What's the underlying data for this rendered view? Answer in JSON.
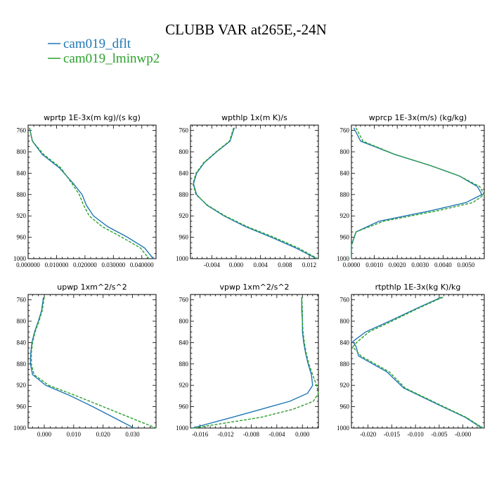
{
  "figure": {
    "title": "CLUBB VAR at265E,-24N",
    "legend": [
      {
        "name": "cam019_dflt",
        "color": "#1f77b4"
      },
      {
        "name": "cam019_lminwp2",
        "color": "#2ca02c"
      }
    ]
  },
  "chart_data": [
    {
      "type": "line",
      "title": "wprtp   1E-3x(m kg)/(s kg)",
      "xlim": [
        0.0,
        0.045
      ],
      "ylim": [
        1000,
        750
      ],
      "xticks": [
        0.0,
        0.01,
        0.02,
        0.03,
        0.04
      ],
      "xtick_labels": [
        "0.000000",
        "0.010000",
        "0.020000",
        "0.030000",
        "0.040000"
      ],
      "yticks": [
        760,
        800,
        840,
        880,
        920,
        960,
        1000
      ],
      "y": [
        755,
        780,
        805,
        830,
        860,
        880,
        900,
        920,
        940,
        960,
        980,
        990,
        1000
      ],
      "series": [
        {
          "name": "cam019_dflt",
          "color": "#1f77b4",
          "dash": false,
          "x": [
            0.0005,
            0.0015,
            0.005,
            0.011,
            0.016,
            0.019,
            0.0205,
            0.023,
            0.028,
            0.035,
            0.041,
            0.0425,
            0.044
          ]
        },
        {
          "name": "cam019_lminwp2",
          "color": "#2ca02c",
          "dash": true,
          "x": [
            0.0005,
            0.0015,
            0.0055,
            0.0115,
            0.0155,
            0.018,
            0.0195,
            0.0215,
            0.026,
            0.033,
            0.0395,
            0.041,
            0.0425
          ]
        }
      ]
    },
    {
      "type": "line",
      "title": "wpthlp   1x(m K)/s",
      "xlim": [
        -0.0075,
        0.0135
      ],
      "ylim": [
        1000,
        750
      ],
      "xticks": [
        -0.004,
        0.0,
        0.004,
        0.008,
        0.012
      ],
      "xtick_labels": [
        "-0.004",
        "0.000",
        "0.004",
        "0.008",
        "0.012"
      ],
      "yticks": [
        760,
        800,
        840,
        880,
        920,
        960,
        1000
      ],
      "y": [
        755,
        780,
        800,
        820,
        840,
        860,
        880,
        900,
        920,
        940,
        960,
        980,
        1000
      ],
      "series": [
        {
          "name": "cam019_dflt",
          "color": "#1f77b4",
          "dash": false,
          "x": [
            -0.0003,
            -0.001,
            -0.0032,
            -0.0052,
            -0.0065,
            -0.007,
            -0.0065,
            -0.0048,
            -0.002,
            0.0015,
            0.0058,
            0.0098,
            0.0132
          ]
        },
        {
          "name": "cam019_lminwp2",
          "color": "#2ca02c",
          "dash": true,
          "x": [
            -0.0004,
            -0.0011,
            -0.0033,
            -0.0053,
            -0.0066,
            -0.0071,
            -0.0066,
            -0.0047,
            -0.0018,
            0.0018,
            0.0062,
            0.0102,
            0.0134
          ]
        }
      ]
    },
    {
      "type": "line",
      "title": "wprcp   1E-3x(m/s) (kg/kg)",
      "xlim": [
        0.0,
        0.0058
      ],
      "ylim": [
        1000,
        750
      ],
      "xticks": [
        0.0,
        0.001,
        0.002,
        0.003,
        0.004,
        0.005
      ],
      "xtick_labels": [
        "0.0000",
        "0.0010",
        "0.0020",
        "0.0030",
        "0.0040",
        "0.0050"
      ],
      "yticks": [
        760,
        800,
        840,
        880,
        920,
        960,
        1000
      ],
      "y": [
        755,
        780,
        805,
        825,
        845,
        865,
        880,
        895,
        910,
        930,
        950,
        975,
        1000
      ],
      "series": [
        {
          "name": "cam019_dflt",
          "color": "#1f77b4",
          "dash": false,
          "x": [
            0.0001,
            0.0004,
            0.0019,
            0.0034,
            0.0047,
            0.0055,
            0.0057,
            0.005,
            0.0035,
            0.0012,
            0.0002,
            0.0,
            0.0
          ]
        },
        {
          "name": "cam019_lminwp2",
          "color": "#2ca02c",
          "dash": true,
          "x": [
            0.0002,
            0.0005,
            0.0019,
            0.0034,
            0.0047,
            0.0056,
            0.0058,
            0.0053,
            0.0038,
            0.0014,
            0.0002,
            0.0,
            0.0
          ]
        }
      ]
    },
    {
      "type": "line",
      "title": "upwp   1xm^2/s^2",
      "xlim": [
        -0.0055,
        0.038
      ],
      "ylim": [
        1000,
        750
      ],
      "xticks": [
        0.0,
        0.01,
        0.02,
        0.03
      ],
      "xtick_labels": [
        "0.000",
        "0.010",
        "0.020",
        "0.030"
      ],
      "yticks": [
        760,
        800,
        840,
        880,
        920,
        960,
        1000
      ],
      "y": [
        755,
        780,
        800,
        820,
        840,
        860,
        880,
        900,
        920,
        940,
        960,
        980,
        1000
      ],
      "series": [
        {
          "name": "cam019_dflt",
          "color": "#1f77b4",
          "dash": false,
          "x": [
            -0.0003,
            -0.0009,
            -0.002,
            -0.0033,
            -0.0042,
            -0.0046,
            -0.0047,
            -0.004,
            0.0005,
            0.009,
            0.0165,
            0.0235,
            0.0305
          ]
        },
        {
          "name": "cam019_lminwp2",
          "color": "#2ca02c",
          "dash": true,
          "x": [
            0.0,
            -0.0007,
            -0.0018,
            -0.0031,
            -0.004,
            -0.0044,
            -0.0044,
            -0.0035,
            0.0015,
            0.011,
            0.02,
            0.029,
            0.038
          ]
        }
      ]
    },
    {
      "type": "line",
      "title": "vpwp   1xm^2/s^2",
      "xlim": [
        -0.0175,
        0.0025
      ],
      "ylim": [
        1000,
        750
      ],
      "xticks": [
        -0.016,
        -0.012,
        -0.008,
        -0.004,
        0.0
      ],
      "xtick_labels": [
        "-0.016",
        "-0.012",
        "-0.008",
        "-0.004",
        "0.000"
      ],
      "yticks": [
        760,
        800,
        840,
        880,
        920,
        960,
        1000
      ],
      "y": [
        755,
        780,
        800,
        820,
        840,
        860,
        880,
        900,
        920,
        935,
        950,
        965,
        980,
        1000
      ],
      "series": [
        {
          "name": "cam019_dflt",
          "color": "#1f77b4",
          "dash": false,
          "x": [
            -0.0001,
            -0.0001,
            0.0,
            0.0,
            0.0002,
            0.0005,
            0.0009,
            0.0014,
            0.0016,
            0.0008,
            -0.002,
            -0.0065,
            -0.011,
            -0.0172
          ]
        },
        {
          "name": "cam019_lminwp2",
          "color": "#2ca02c",
          "dash": true,
          "x": [
            -0.0001,
            0.0,
            0.0,
            0.0001,
            0.0003,
            0.0006,
            0.001,
            0.0016,
            0.0022,
            0.0025,
            0.0017,
            -0.0015,
            -0.0065,
            -0.017
          ]
        }
      ]
    },
    {
      "type": "line",
      "title": "rtpthlp   1E-3x(kg K)/kg",
      "xlim": [
        -0.0235,
        0.0045
      ],
      "ylim": [
        1000,
        750
      ],
      "xticks": [
        -0.02,
        -0.015,
        -0.01,
        -0.005,
        0.0
      ],
      "xtick_labels": [
        "-0.020",
        "-0.015",
        "-0.010",
        "-0.005",
        "-0.000"
      ],
      "yticks": [
        760,
        800,
        840,
        880,
        920,
        960,
        1000
      ],
      "y": [
        755,
        775,
        800,
        820,
        838,
        848,
        865,
        895,
        925,
        955,
        980,
        1000
      ],
      "series": [
        {
          "name": "cam019_dflt",
          "color": "#1f77b4",
          "dash": false,
          "x": [
            -0.0045,
            -0.0095,
            -0.0155,
            -0.0205,
            -0.0232,
            -0.0225,
            -0.022,
            -0.016,
            -0.0125,
            -0.0055,
            0.0005,
            0.004
          ]
        },
        {
          "name": "cam019_lminwp2",
          "color": "#2ca02c",
          "dash": true,
          "x": [
            -0.0042,
            -0.0092,
            -0.015,
            -0.0198,
            -0.0222,
            -0.0232,
            -0.0215,
            -0.0155,
            -0.0122,
            -0.0052,
            0.0007,
            0.0042
          ]
        }
      ]
    }
  ]
}
